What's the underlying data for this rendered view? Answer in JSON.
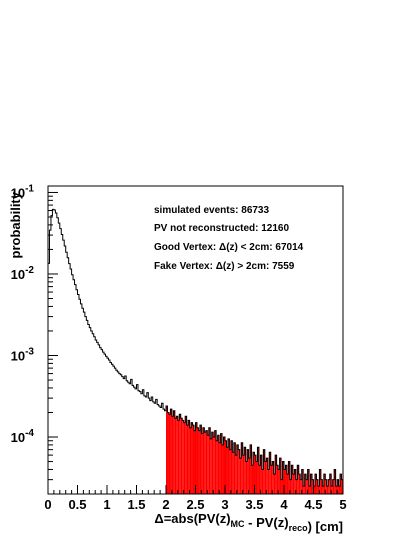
{
  "chart_data": {
    "type": "histogram",
    "title": "",
    "xlabel": "Δ=abs(PV(z)_MC - PV(z)_reco) [cm]",
    "ylabel": "probability",
    "xlim": [
      0,
      5
    ],
    "ylim": [
      2e-05,
      0.12
    ],
    "yscale": "log",
    "grid": false,
    "x_ticks": [
      "0",
      "0.5",
      "1",
      "1.5",
      "2",
      "2.5",
      "3",
      "3.5",
      "4",
      "4.5",
      "5"
    ],
    "y_ticks": [
      {
        "value": 0.1,
        "base": "10",
        "exp": "-1"
      },
      {
        "value": 0.01,
        "base": "10",
        "exp": "-2"
      },
      {
        "value": 0.001,
        "base": "10",
        "exp": "-3"
      },
      {
        "value": 0.0001,
        "base": "10",
        "exp": "-4"
      }
    ],
    "fill_region": {
      "from": 2.0,
      "to": 5.0,
      "color": "#ff0000",
      "label": "Fake Vertex"
    },
    "line_color": "#000000",
    "bin_width": 0.025,
    "bin_values": [
      0.0135,
      0.0345,
      0.052,
      0.062,
      0.061,
      0.056,
      0.049,
      0.042,
      0.036,
      0.0305,
      0.026,
      0.022,
      0.0185,
      0.0158,
      0.0134,
      0.0115,
      0.0098,
      0.0085,
      0.0074,
      0.0064,
      0.0056,
      0.0049,
      0.0043,
      0.0038,
      0.0034,
      0.003,
      0.0027,
      0.0024,
      0.0022,
      0.002,
      0.00185,
      0.0017,
      0.00155,
      0.00145,
      0.00135,
      0.00125,
      0.00118,
      0.0011,
      0.00104,
      0.00098,
      0.00093,
      0.00088,
      0.00082,
      0.00078,
      0.00074,
      0.0007,
      0.00066,
      0.00063,
      0.0006,
      0.00058,
      0.00055,
      0.00052,
      0.00056,
      0.00049,
      0.00047,
      0.00045,
      0.00051,
      0.00043,
      0.00041,
      0.00039,
      0.00044,
      0.00037,
      0.00036,
      0.00034,
      0.00038,
      0.00032,
      0.00031,
      0.00035,
      0.0003,
      0.00028,
      0.00031,
      0.00027,
      0.00026,
      0.00029,
      0.00025,
      0.00024,
      0.00023,
      0.00026,
      0.00022,
      0.00021,
      0.00024,
      0.0002,
      0.00019,
      0.00022,
      0.00018,
      0.00021,
      0.00017,
      0.00018,
      0.00016,
      0.00019,
      0.00017,
      0.00016,
      0.00015,
      0.00018,
      0.00014,
      0.00016,
      0.00013,
      0.00015,
      0.00014,
      0.00012,
      0.00015,
      0.00013,
      0.00012,
      0.00014,
      0.00011,
      0.00013,
      0.000115,
      0.00012,
      0.000105,
      0.00013,
      9.5e-05,
      0.000115,
      0.0001,
      0.00012,
      9e-05,
      0.000105,
      8.5e-05,
      0.00011,
      8e-05,
      0.0001,
      9e-05,
      7.5e-05,
      9.5e-05,
      7e-05,
      9e-05,
      6.5e-05,
      8.5e-05,
      6e-05,
      8e-05,
      7e-05,
      5.5e-05,
      8.5e-05,
      6e-05,
      7.5e-05,
      5e-05,
      7e-05,
      5.5e-05,
      8e-05,
      4.5e-05,
      6.5e-05,
      6e-05,
      5e-05,
      7.5e-05,
      4.5e-05,
      6e-05,
      4e-05,
      7e-05,
      5e-05,
      5.5e-05,
      4e-05,
      6.5e-05,
      4.5e-05,
      5e-05,
      3.5e-05,
      6e-05,
      4.5e-05,
      4e-05,
      5.5e-05,
      3e-05,
      5e-05,
      4e-05,
      4.5e-05,
      3.5e-05,
      5e-05,
      3e-05,
      4.5e-05,
      3.5e-05,
      4e-05,
      3e-05,
      4.5e-05,
      3.5e-05,
      3e-05,
      4e-05,
      2.5e-05,
      3.5e-05,
      3e-05,
      4e-05,
      2.5e-05,
      3.5e-05,
      3e-05,
      2.5e-05,
      3.5e-05,
      3e-05,
      2.5e-05,
      4e-05,
      3e-05,
      2.5e-05,
      3.5e-05,
      3e-05,
      2.5e-05,
      3e-05,
      3.5e-05,
      2.5e-05,
      3e-05,
      4e-05,
      2.5e-05,
      3e-05,
      2.5e-05,
      3.5e-05,
      3e-05
    ],
    "annotations": [
      "simulated events: 86733",
      "PV not reconstructed: 12160",
      "Good Vertex:  Δ(z) < 2cm: 67014",
      "Fake Vertex:  Δ(z) > 2cm: 7559"
    ]
  }
}
